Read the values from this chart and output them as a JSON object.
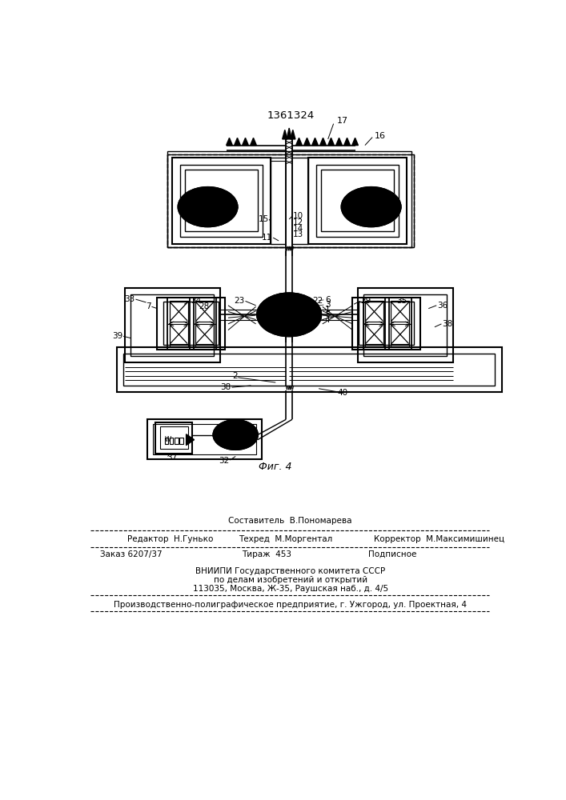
{
  "patent_number": "1361324",
  "fig_caption": "Фиг. 4",
  "background_color": "#ffffff",
  "line_color": "#000000",
  "footer_sestavitel": "Составитель  В.Пономарева",
  "footer_redaktor": "Редактор  Н.Гунько",
  "footer_tekhred": "Техред  М.Моргентал",
  "footer_korrektor": "Корректор  М.Максимишинец",
  "footer_zakaz": "Заказ 6207/37",
  "footer_tirazh": "Тираж  453",
  "footer_podpisnoe": "Подписное",
  "footer_vnipi1": "ВНИИПИ Государственного комитета СССР",
  "footer_vnipi2": "по делам изобретений и открытий",
  "footer_vnipi3": "113035, Москва, Ж-35, Раушская наб., д. 4/5",
  "footer_proizv": "Производственно-полиграфическое предприятие, г. Ужгород, ул. Проектная, 4"
}
